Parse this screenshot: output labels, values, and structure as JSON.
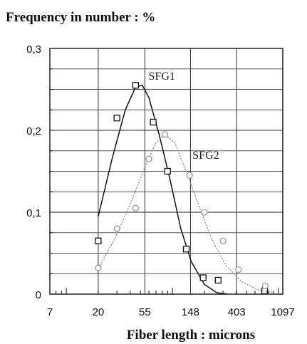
{
  "chart_data": {
    "type": "scatter",
    "title": "Frequency in number : %",
    "xlabel": "Fiber length : microns",
    "ylabel": "",
    "x_scale": "log",
    "xlim": [
      7,
      1097
    ],
    "ylim": [
      0,
      0.3
    ],
    "x_ticks": [
      7,
      20,
      55,
      148,
      403,
      1097
    ],
    "x_tick_labels": [
      "7",
      "20",
      "55",
      "148",
      "403",
      "1097"
    ],
    "y_ticks": [
      0,
      0.1,
      0.2,
      0.3
    ],
    "y_tick_labels": [
      "0",
      "0,1",
      "0,2",
      "0,3"
    ],
    "grid": true,
    "series": [
      {
        "name": "SFG1",
        "color": "#111111",
        "marker": "square",
        "line_style": "solid",
        "points": [
          {
            "x": 20,
            "y": 0.065
          },
          {
            "x": 30,
            "y": 0.215
          },
          {
            "x": 45,
            "y": 0.255
          },
          {
            "x": 66,
            "y": 0.21
          },
          {
            "x": 90,
            "y": 0.15
          },
          {
            "x": 135,
            "y": 0.055
          },
          {
            "x": 195,
            "y": 0.02
          },
          {
            "x": 270,
            "y": 0.017
          },
          {
            "x": 740,
            "y": 0.004
          }
        ],
        "curve": [
          {
            "x": 20,
            "y": 0.095
          },
          {
            "x": 27,
            "y": 0.165
          },
          {
            "x": 36,
            "y": 0.225
          },
          {
            "x": 45,
            "y": 0.253
          },
          {
            "x": 52,
            "y": 0.255
          },
          {
            "x": 60,
            "y": 0.24
          },
          {
            "x": 75,
            "y": 0.195
          },
          {
            "x": 95,
            "y": 0.14
          },
          {
            "x": 120,
            "y": 0.08
          },
          {
            "x": 150,
            "y": 0.04
          },
          {
            "x": 200,
            "y": 0.012
          },
          {
            "x": 260,
            "y": 0.002
          },
          {
            "x": 330,
            "y": 0.0
          }
        ]
      },
      {
        "name": "SFG2",
        "color": "#888888",
        "marker": "circle",
        "line_style": "dotted",
        "points": [
          {
            "x": 20,
            "y": 0.032
          },
          {
            "x": 30,
            "y": 0.08
          },
          {
            "x": 45,
            "y": 0.105
          },
          {
            "x": 60,
            "y": 0.165
          },
          {
            "x": 85,
            "y": 0.195
          },
          {
            "x": 145,
            "y": 0.145
          },
          {
            "x": 200,
            "y": 0.1
          },
          {
            "x": 300,
            "y": 0.065
          },
          {
            "x": 420,
            "y": 0.03
          },
          {
            "x": 750,
            "y": 0.01
          }
        ],
        "curve": [
          {
            "x": 20,
            "y": 0.032
          },
          {
            "x": 28,
            "y": 0.065
          },
          {
            "x": 40,
            "y": 0.11
          },
          {
            "x": 55,
            "y": 0.155
          },
          {
            "x": 70,
            "y": 0.185
          },
          {
            "x": 85,
            "y": 0.195
          },
          {
            "x": 105,
            "y": 0.185
          },
          {
            "x": 135,
            "y": 0.15
          },
          {
            "x": 175,
            "y": 0.11
          },
          {
            "x": 230,
            "y": 0.07
          },
          {
            "x": 320,
            "y": 0.035
          },
          {
            "x": 450,
            "y": 0.015
          },
          {
            "x": 650,
            "y": 0.005
          },
          {
            "x": 900,
            "y": 0.002
          }
        ]
      }
    ]
  }
}
